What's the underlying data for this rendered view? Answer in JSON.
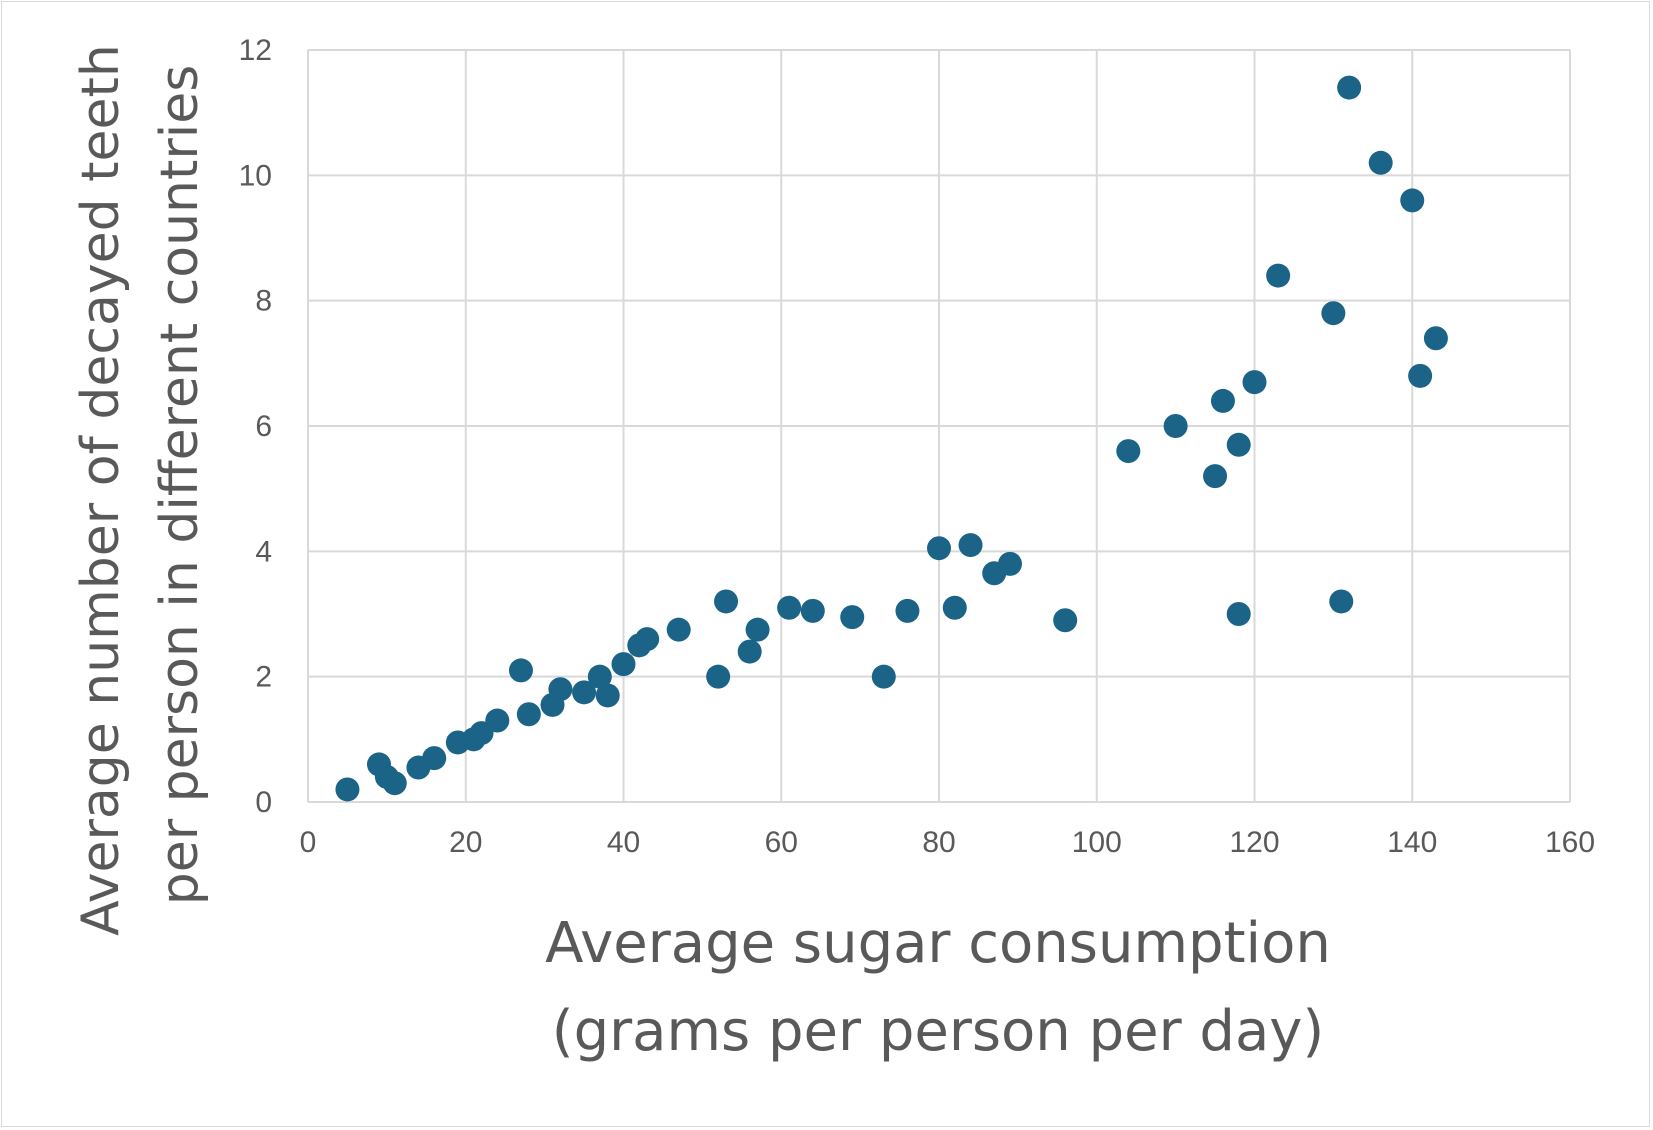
{
  "chart_data": {
    "type": "scatter",
    "title": "",
    "xlabel_lines": [
      "Average sugar consumption",
      "(grams per person per day)"
    ],
    "ylabel_lines": [
      "Average number of decayed teeth",
      "per person in different countries"
    ],
    "xlim": [
      0,
      160
    ],
    "ylim": [
      0,
      12
    ],
    "x_ticks": [
      0,
      20,
      40,
      60,
      80,
      100,
      120,
      140,
      160
    ],
    "y_ticks": [
      0,
      2,
      4,
      6,
      8,
      10,
      12
    ],
    "x_tick_labels": [
      "0",
      "20",
      "40",
      "60",
      "80",
      "100",
      "120",
      "140",
      "160"
    ],
    "y_tick_labels": [
      "0",
      "2",
      "4",
      "6",
      "8",
      "10",
      "12"
    ],
    "grid": true,
    "legend": "none",
    "marker_color": "#1b6487",
    "gridline_color": "#d9d9d9",
    "text_color": "#595959",
    "points": [
      {
        "x": 5,
        "y": 0.2
      },
      {
        "x": 9,
        "y": 0.6
      },
      {
        "x": 10,
        "y": 0.4
      },
      {
        "x": 11,
        "y": 0.3
      },
      {
        "x": 14,
        "y": 0.55
      },
      {
        "x": 16,
        "y": 0.7
      },
      {
        "x": 19,
        "y": 0.95
      },
      {
        "x": 21,
        "y": 1.0
      },
      {
        "x": 22,
        "y": 1.1
      },
      {
        "x": 24,
        "y": 1.3
      },
      {
        "x": 27,
        "y": 2.1
      },
      {
        "x": 28,
        "y": 1.4
      },
      {
        "x": 31,
        "y": 1.55
      },
      {
        "x": 32,
        "y": 1.8
      },
      {
        "x": 35,
        "y": 1.75
      },
      {
        "x": 37,
        "y": 2.0
      },
      {
        "x": 38,
        "y": 1.7
      },
      {
        "x": 40,
        "y": 2.2
      },
      {
        "x": 42,
        "y": 2.5
      },
      {
        "x": 43,
        "y": 2.6
      },
      {
        "x": 47,
        "y": 2.75
      },
      {
        "x": 52,
        "y": 2.0
      },
      {
        "x": 53,
        "y": 3.2
      },
      {
        "x": 56,
        "y": 2.4
      },
      {
        "x": 57,
        "y": 2.75
      },
      {
        "x": 61,
        "y": 3.1
      },
      {
        "x": 64,
        "y": 3.05
      },
      {
        "x": 69,
        "y": 2.95
      },
      {
        "x": 73,
        "y": 2.0
      },
      {
        "x": 76,
        "y": 3.05
      },
      {
        "x": 80,
        "y": 4.05
      },
      {
        "x": 82,
        "y": 3.1
      },
      {
        "x": 84,
        "y": 4.1
      },
      {
        "x": 87,
        "y": 3.65
      },
      {
        "x": 89,
        "y": 3.8
      },
      {
        "x": 96,
        "y": 2.9
      },
      {
        "x": 104,
        "y": 5.6
      },
      {
        "x": 110,
        "y": 6.0
      },
      {
        "x": 115,
        "y": 5.2
      },
      {
        "x": 116,
        "y": 6.4
      },
      {
        "x": 118,
        "y": 5.7
      },
      {
        "x": 118,
        "y": 3.0
      },
      {
        "x": 120,
        "y": 6.7
      },
      {
        "x": 123,
        "y": 8.4
      },
      {
        "x": 130,
        "y": 7.8
      },
      {
        "x": 131,
        "y": 3.2
      },
      {
        "x": 132,
        "y": 11.4
      },
      {
        "x": 136,
        "y": 10.2
      },
      {
        "x": 140,
        "y": 9.6
      },
      {
        "x": 141,
        "y": 6.8
      },
      {
        "x": 143,
        "y": 7.4
      }
    ]
  }
}
